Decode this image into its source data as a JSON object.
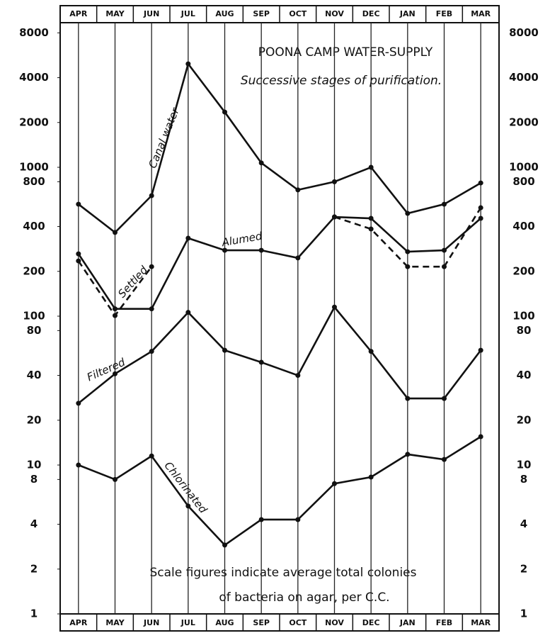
{
  "chart_data": {
    "type": "line",
    "title": "POONA CAMP WATER-SUPPLY",
    "subtitle": "Successive stages of purification.",
    "annotation": [
      "Scale figures indicate average total colonies",
      "of bacteria on agar, per C.C."
    ],
    "categories": [
      "APR",
      "MAY",
      "JUN",
      "JUL",
      "AUG",
      "SEP",
      "OCT",
      "NOV",
      "DEC",
      "JAN",
      "FEB",
      "MAR"
    ],
    "log_scale": true,
    "ylim": [
      1,
      10000
    ],
    "yticks": [
      1,
      2,
      4,
      8,
      10,
      20,
      40,
      80,
      100,
      200,
      400,
      800,
      1000,
      2000,
      4000,
      8000
    ],
    "series": [
      {
        "name": "Canal water",
        "color": "#111111",
        "dashed": false,
        "values": [
          565,
          365,
          645,
          4950,
          2350,
          1070,
          705,
          800,
          1000,
          490,
          565,
          785
        ]
      },
      {
        "name": "Alumed",
        "color": "#111111",
        "dashed": false,
        "values": [
          262,
          112,
          112,
          334,
          277,
          277,
          246,
          464,
          454,
          271,
          277,
          454
        ]
      },
      {
        "name": "Settled",
        "color": "#111111",
        "dashed": true,
        "values": [
          235,
          101,
          215,
          null,
          null,
          null,
          null,
          464,
          385,
          215,
          215,
          535
        ]
      },
      {
        "name": "Filtered",
        "color": "#111111",
        "dashed": false,
        "values": [
          26,
          41,
          58,
          106,
          59,
          49,
          40,
          115,
          58,
          28,
          28,
          59
        ]
      },
      {
        "name": "Chlorinated",
        "color": "#111111",
        "dashed": false,
        "values": [
          10,
          8,
          11.5,
          5.3,
          2.9,
          4.3,
          4.3,
          7.5,
          8.3,
          11.8,
          10.9,
          15.5
        ]
      }
    ]
  }
}
